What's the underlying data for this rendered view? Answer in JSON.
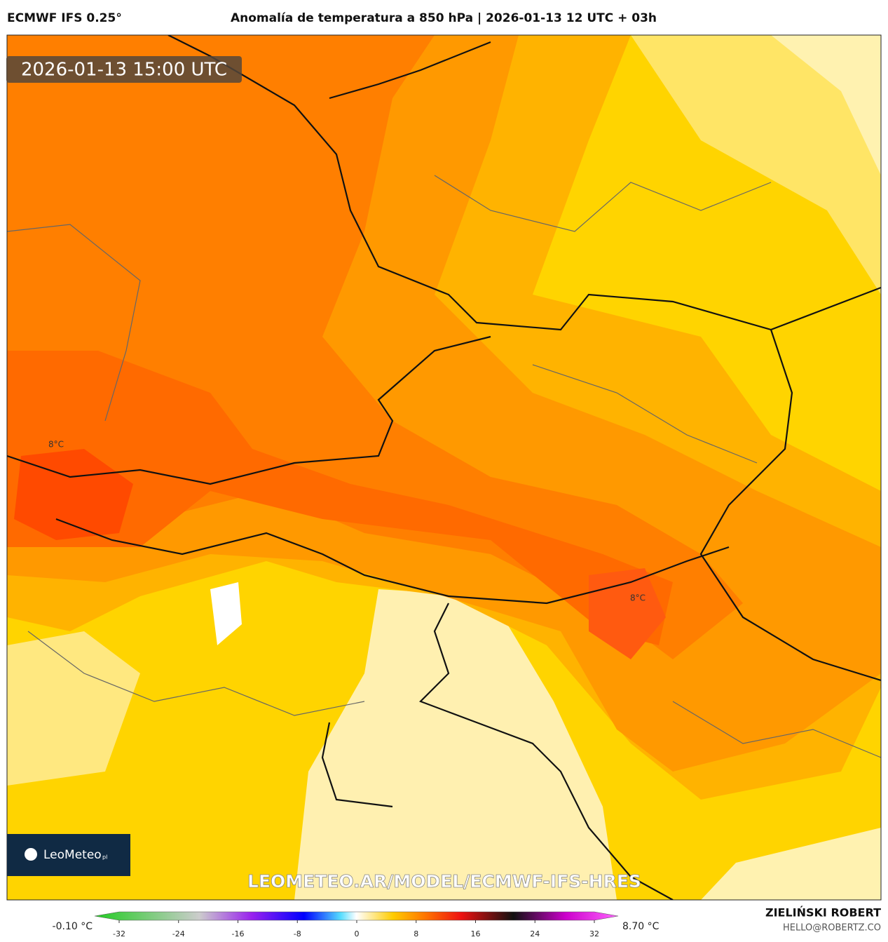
{
  "header": {
    "model": "ECMWF IFS 0.25°",
    "title": "Anomalía de temperatura a 850 hPa | 2026-01-13 12 UTC + 03h"
  },
  "map": {
    "timestamp": "2026-01-13 15:00 UTC",
    "contour_labels": [
      "8°C",
      "8°C"
    ],
    "logo": "LeoMeteo",
    "logo_suffix": "pl",
    "watermark": "LEOMETEO.AR/MODEL/ECMWF-IFS-HRES"
  },
  "legend": {
    "min_label": "-0.10 °C",
    "max_label": "8.70 °C",
    "ticks": [
      -32,
      -24,
      -16,
      -8,
      0,
      8,
      16,
      24,
      32
    ]
  },
  "credit": {
    "author": "ZIELIŃSKI ROBERT",
    "email": "HELLO@ROBERTZ.CO"
  }
}
